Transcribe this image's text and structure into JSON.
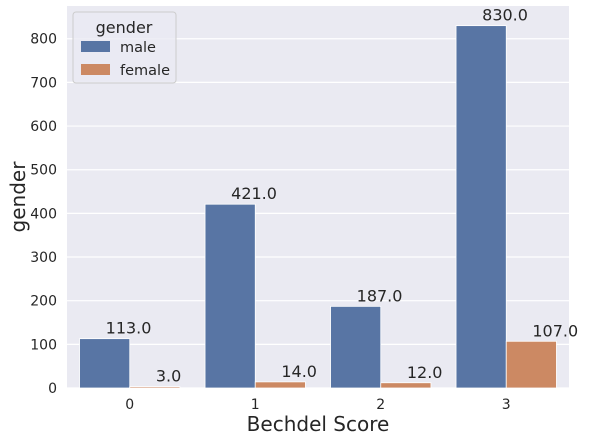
{
  "chart_data": {
    "type": "bar",
    "xlabel": "Bechdel Score",
    "ylabel": "gender",
    "categories": [
      "0",
      "1",
      "2",
      "3"
    ],
    "series": [
      {
        "name": "male",
        "values": [
          113.0,
          421.0,
          187.0,
          830.0
        ]
      },
      {
        "name": "female",
        "values": [
          3.0,
          14.0,
          12.0,
          107.0
        ]
      }
    ],
    "data_labels": [
      [
        "113.0",
        "421.0",
        "187.0",
        "830.0"
      ],
      [
        "3.0",
        "14.0",
        "12.0",
        "107.0"
      ]
    ],
    "ylim": [
      0,
      875
    ],
    "yticks": [
      0,
      100,
      200,
      300,
      400,
      500,
      600,
      700,
      800
    ],
    "ytick_labels": [
      "0",
      "100",
      "200",
      "300",
      "400",
      "500",
      "600",
      "700",
      "800"
    ],
    "grid": true,
    "legend": {
      "title": "gender",
      "position": "top-left",
      "entries": [
        "male",
        "female"
      ]
    },
    "colors": {
      "male": "#5875a4",
      "female": "#cc8963",
      "background": "#eaeaf2",
      "grid": "#ffffff"
    }
  }
}
